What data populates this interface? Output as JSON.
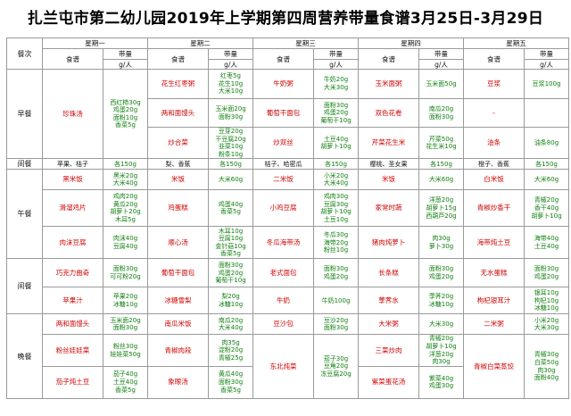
{
  "title": "扎兰屯市第二幼儿园2019年上学期第四周营养带量食谱3月25日-3月29日",
  "meal_header": "餐次",
  "days": [
    "星期一",
    "星期二",
    "星期三",
    "星期四",
    "星期五"
  ],
  "recipe_label": "食谱",
  "amount_label": "带量",
  "unit_label": "g/人",
  "meals": {
    "breakfast": "早餐",
    "snack1": "间餐",
    "lunch": "午餐",
    "snack2": "间餐",
    "dinner": "晚餐"
  },
  "breakfast": {
    "mon": {
      "dish": "珍珠汤",
      "qty": "西红柿30g\n鸡蛋20g\n面粉10g\n香菜5g"
    },
    "tue": [
      {
        "dish": "花生红枣粥",
        "qty": "红枣5g\n花生10g\n大米10g"
      },
      {
        "dish": "两和面馒头",
        "qty": "玉米面20g\n面粉30g"
      },
      {
        "dish": "炒合菜",
        "qty": "豆芽20g\n干豆腐20g\n韭菜10g\n粉条10g"
      }
    ],
    "wed": [
      {
        "dish": "牛奶粥",
        "qty": "牛奶20g\n大米30g"
      },
      {
        "dish": "葡萄干面包",
        "qty": "面粉30g\n鸡蛋20g\n葡萄干10g"
      },
      {
        "dish": "炒双丝",
        "qty": "土豆40g\n胡萝卜10g"
      }
    ],
    "thu": [
      {
        "dish": "玉米面粥",
        "qty": "玉米面50g"
      },
      {
        "dish": "双色花卷",
        "qty": "南瓜20g\n面粉30g"
      },
      {
        "dish": "芹菜花生米",
        "qty": "芹菜50g\n花生米10g"
      }
    ],
    "fri": [
      {
        "dish": "豆浆",
        "qty": "豆浆100g"
      },
      {
        "dish": "-",
        "qty": ""
      },
      {
        "dish": "油条",
        "qty": "油条80g"
      }
    ]
  },
  "snack1": {
    "mon": {
      "dish": "苹果、桔子",
      "qty": "各150g"
    },
    "tue": {
      "dish": "梨、香蕉",
      "qty": "各150g"
    },
    "wed": {
      "dish": "桔子、哈密瓜",
      "qty": "各150g"
    },
    "thu": {
      "dish": "樱桃、圣女果",
      "qty": "各150g"
    },
    "fri": {
      "dish": "橙子、香蕉",
      "qty": "各150g"
    }
  },
  "lunch": {
    "mon": [
      {
        "dish": "黑米饭",
        "qty": "黑米20g\n大米40g"
      },
      {
        "dish": "滑溜鸡片",
        "qty": "鸡肉20g\n黄瓜20g\n胡萝卜20g\n木耳5g"
      },
      {
        "dish": "肉沫豆腐",
        "qty": "肉沫40g\n豆腐40g"
      }
    ],
    "tue": [
      {
        "dish": "米饭",
        "qty": "大米60g"
      },
      {
        "dish": "鸡蛋糕",
        "qty": "鸡蛋40g\n香菜5g"
      },
      {
        "dish": "顺心汤",
        "qty": "木耳10g\n豆腐10g\n金针菇10g\n香菜5g"
      }
    ],
    "wed": [
      {
        "dish": "二米饭",
        "qty": "小米20g\n大米40g"
      },
      {
        "dish": "小鸡豆腐",
        "qty": "鸡肉30g\n豆腐30g\n胡萝卜10g\n土豆10g"
      },
      {
        "dish": "冬瓜海带汤",
        "qty": "冬瓜30g\n海带20g\n粉丝10g"
      }
    ],
    "thu": [
      {
        "dish": "米饭",
        "qty": "大米60g"
      },
      {
        "dish": "家常时蔬",
        "qty": "洋葱20g\n胡萝卜15g\n西葫芦20g"
      },
      {
        "dish": "猪肉炖萝卜",
        "qty": "肉30g\n萝卜30g"
      }
    ],
    "fri": [
      {
        "dish": "白米饭",
        "qty": "大米60g"
      },
      {
        "dish": "青椒炒香干",
        "qty": "青椒20g\n香干40g\n胡萝卜10g"
      },
      {
        "dish": "海带炖土豆",
        "qty": "海带40g\n土豆40g"
      }
    ]
  },
  "snack2": {
    "mon": [
      {
        "dish": "巧克力曲奇",
        "qty": "面粉30g\n可可粉20g"
      },
      {
        "dish": "苹果汁",
        "qty": "苹果20g\n冰糖10g"
      }
    ],
    "tue": [
      {
        "dish": "葡萄干面包",
        "qty": "面粉30g\n鸡蛋20g\n葡萄干10g"
      },
      {
        "dish": "冰糖雪梨",
        "qty": "梨20g\n冰糖10g"
      }
    ],
    "wed": [
      {
        "dish": "老式面包",
        "qty": "面粉30g\n鸡蛋20g"
      },
      {
        "dish": "牛奶",
        "qty": "牛奶100g"
      }
    ],
    "thu": [
      {
        "dish": "长条糕",
        "qty": "面粉30g\n鸡蛋20g"
      },
      {
        "dish": "荸荠水",
        "qty": "荸荠20g\n冰糖10g"
      }
    ],
    "fri": [
      {
        "dish": "无水蛋糕",
        "qty": "面粉30g\n鸡蛋20g"
      },
      {
        "dish": "枸杞银耳汁",
        "qty": "银耳10g\n枸杞10g\n冰糖10g"
      }
    ]
  },
  "dinner": {
    "mon": [
      {
        "dish": "两和面馒头",
        "qty": "玉米面20g\n面粉30g"
      },
      {
        "dish": "粉丝娃娃菜",
        "qty": "粉丝30g\n娃娃菜50g"
      },
      {
        "dish": "茄子炖土豆",
        "qty": "茄子40g\n土豆40g\n香菜5g"
      }
    ],
    "tue": [
      {
        "dish": "南瓜米饭",
        "qty": "南瓜20g\n大米40g"
      },
      {
        "dish": "青椒肉段",
        "qty": "肉35g\n淀粉20g\n青椒25g"
      },
      {
        "dish": "象眼汤",
        "qty": "黄瓜40g\n面粉30g\n香菜5g"
      }
    ],
    "wed": [
      {
        "dish": "豆沙包",
        "qty": "豆沙20g\n面粉30g"
      },
      {
        "dish": "东北炖菜",
        "qty": "茄子30g\n豆角20g\n冻豆腐20g"
      }
    ],
    "thu": [
      {
        "dish": "大米粥",
        "qty": "大米30g"
      },
      {
        "dish": "三菜炒肉",
        "qty": "青椒20g\n胡萝卜10g\n洋葱20g\n肉30g"
      },
      {
        "dish": "紫菜蛋花汤",
        "qty": "紫菜40g\n鸡蛋30g"
      }
    ],
    "fri": [
      {
        "dish": "二米粥",
        "qty": "小米20g\n大米30g"
      },
      {
        "dish": "青椒白菜蒸饺",
        "qty": "青椒30g\n白菜50g\n肉30g\n面粉40g"
      }
    ]
  }
}
